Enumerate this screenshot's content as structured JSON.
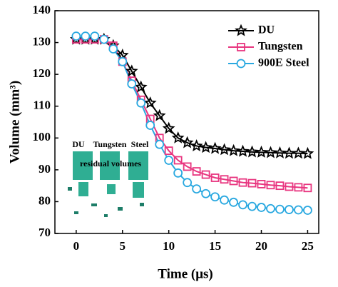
{
  "chart_data": {
    "type": "line",
    "x_label": "Time (μs)",
    "y_label": "Volume (mm³)",
    "x": [
      0,
      1,
      2,
      3,
      4,
      5,
      6,
      7,
      8,
      9,
      10,
      11,
      12,
      13,
      14,
      15,
      16,
      17,
      18,
      19,
      20,
      21,
      22,
      23,
      24,
      25
    ],
    "series": [
      {
        "name": "DU",
        "color": "#000000",
        "marker": "star",
        "values": [
          131,
          131,
          131,
          131,
          129,
          126,
          121,
          116,
          111,
          107,
          103,
          100,
          98.5,
          97.5,
          97,
          96.7,
          96.3,
          96,
          95.8,
          95.6,
          95.5,
          95.4,
          95.3,
          95.2,
          95.2,
          95.1
        ]
      },
      {
        "name": "Tungsten",
        "color": "#e8357f",
        "marker": "square",
        "values": [
          131,
          131,
          131,
          131,
          129,
          124,
          118,
          112,
          106,
          100,
          96,
          93,
          91,
          89.5,
          88.5,
          87.5,
          87,
          86.5,
          86,
          85.8,
          85.5,
          85.2,
          85,
          84.7,
          84.5,
          84.3
        ]
      },
      {
        "name": "900E Steel",
        "color": "#29a8e0",
        "marker": "circle",
        "values": [
          132,
          132,
          132,
          131,
          128,
          124,
          117,
          111,
          104,
          98,
          93,
          89,
          86,
          84,
          82.5,
          81.5,
          80.5,
          79.8,
          79,
          78.5,
          78.2,
          77.8,
          77.6,
          77.5,
          77.4,
          77.3
        ]
      }
    ],
    "xlim": [
      -2.3,
      26.2
    ],
    "ylim": [
      70,
      140
    ],
    "xticks": [
      0,
      5,
      10,
      15,
      20,
      25
    ],
    "yticks": [
      70,
      80,
      90,
      100,
      110,
      120,
      130,
      140
    ],
    "legend_position": "upper right",
    "annotations": [
      "DU",
      "Tungsten",
      "Steel",
      "residual volumes"
    ]
  }
}
